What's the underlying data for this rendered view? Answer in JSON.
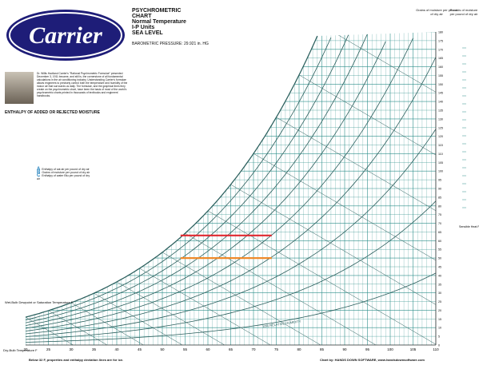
{
  "header": {
    "brand": "Carrier",
    "title_lines": [
      "PSYCHROMETRIC",
      "CHART",
      "Normal Temperature",
      "I-P Units",
      "SEA LEVEL"
    ],
    "barometric": "BAROMETRIC PRESSURE: 29.921 in. HG",
    "right_label_1": "Grains of moisture per pound of dry air",
    "right_label_2": "Pounds of moisture per pound of dry air"
  },
  "bio_text": "Dr. Willis Haviland Carrier's \"Rational Psychrometric Formulae\" presented December 3, 1911 became, and still is, the cornerstone of all fundamental calculations in the air conditioning industry. Understanding Carrier's formulae allows engineers to precisely control both the temperature and humidity of the indoor air that surrounds us daily. The formulae, and the graphical lines they create on the psychrometric chart, have been the basis of most of the world's psychrometric charts printed in thousands of textbooks and engineers' handbooks.",
  "enthalpy_title": "ENTHALPY OF ADDED OR REJECTED MOISTURE",
  "legend": [
    {
      "letter": "A",
      "text": "Enthalpy of sat air per pound of dry air"
    },
    {
      "letter": "B",
      "text": "Grains of moisture per pound of dry air"
    },
    {
      "letter": "C",
      "text": "Enthalpy of water Btu per pound of dry air"
    }
  ],
  "sub_labels": {
    "temp_water": "Temperature of water F",
    "temp_ice": "Temperature of ice F"
  },
  "footer": {
    "note": "Below 32 F, properties and enthalpy deviation lines are for ice.",
    "credit": "Chart by: HANDS DOWN SOFTWARE, www.handsdownsoftware.com"
  },
  "axis_labels": {
    "wet_bulb": "Wet-Bulb Dewpoint or Saturation Temperature F",
    "dry_bulb": "Dry-Bulb Temperature F",
    "sensible": "Sensible Heat Factor",
    "rh": "10% RELATIVE HUMIDITY"
  },
  "colors": {
    "grid": "#2e8f8b",
    "rh": "#2b5f5d",
    "highlight_red": "#e0282f",
    "highlight_orange": "#ef8a2a",
    "logo_bg": "#1e1d78"
  },
  "chart_data": {
    "type": "psychrometric",
    "x_range": [
      20,
      110
    ],
    "x_ticks": [
      20,
      25,
      30,
      35,
      40,
      45,
      50,
      55,
      60,
      65,
      70,
      75,
      80,
      85,
      90,
      95,
      100,
      105,
      110
    ],
    "y_range": [
      0,
      180
    ],
    "y_ticks": [
      0,
      5,
      10,
      15,
      20,
      25,
      30,
      35,
      40,
      45,
      50,
      55,
      60,
      65,
      70,
      75,
      80,
      85,
      90,
      95,
      100,
      105,
      110,
      115,
      120,
      125,
      130,
      135,
      140,
      145,
      150,
      155,
      160,
      165,
      170,
      175,
      180
    ],
    "rh_curves_percent": [
      10,
      20,
      30,
      40,
      50,
      60,
      70,
      80,
      90,
      100
    ],
    "highlight_lines": [
      {
        "color": "red",
        "y_grains": 63,
        "x_start": 54,
        "x_end": 74
      },
      {
        "color": "orange",
        "y_grains": 50,
        "x_start": 54,
        "x_end": 74
      }
    ]
  }
}
